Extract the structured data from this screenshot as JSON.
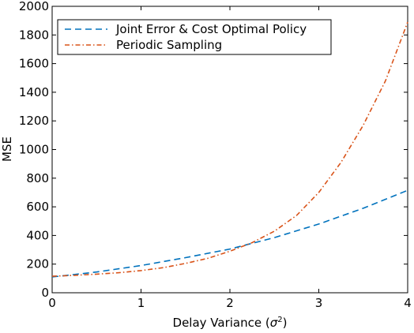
{
  "chart_data": {
    "type": "line",
    "title": "",
    "xlabel": "Delay Variance (",
    "xlabel_symbol": "σ",
    "xlabel_exponent": "2",
    "xlabel_suffix": ")",
    "ylabel": "MSE",
    "xlim": [
      0,
      4
    ],
    "ylim": [
      0,
      2000
    ],
    "xticks": [
      0,
      1,
      2,
      3,
      4
    ],
    "yticks": [
      0,
      200,
      400,
      600,
      800,
      1000,
      1200,
      1400,
      1600,
      1800,
      2000
    ],
    "grid": false,
    "legend_position": "top-left",
    "series": [
      {
        "name": "Joint Error & Cost Optimal Policy",
        "color": "#0072bd",
        "dash": "8,5",
        "x": [
          0,
          0.5,
          1,
          1.5,
          2,
          2.5,
          3,
          3.5,
          4
        ],
        "y": [
          110,
          145,
          190,
          245,
          305,
          385,
          480,
          590,
          715
        ]
      },
      {
        "name": "Periodic Sampling",
        "color": "#d95319",
        "dash": "6,3,1.5,3",
        "x": [
          0,
          0.25,
          0.5,
          0.75,
          1,
          1.25,
          1.5,
          1.75,
          2,
          2.25,
          2.5,
          2.75,
          3,
          3.25,
          3.5,
          3.75,
          4
        ],
        "y": [
          115,
          122,
          130,
          140,
          155,
          175,
          205,
          240,
          290,
          350,
          430,
          540,
          700,
          910,
          1170,
          1480,
          1890
        ]
      }
    ]
  }
}
